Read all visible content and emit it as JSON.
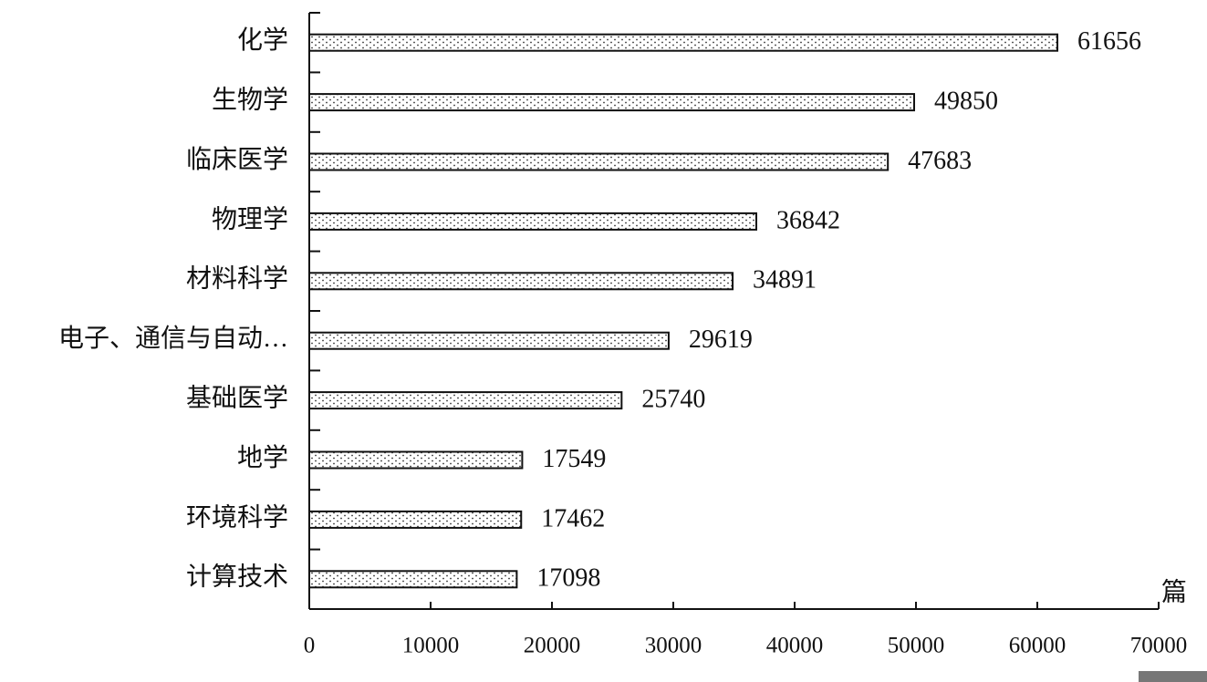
{
  "chart_data": {
    "type": "bar",
    "orientation": "horizontal",
    "categories": [
      "化学",
      "生物学",
      "临床医学",
      "物理学",
      "材料科学",
      "电子、通信与自动…",
      "基础医学",
      "地学",
      "环境科学",
      "计算技术"
    ],
    "values": [
      61656,
      49850,
      47683,
      36842,
      34891,
      29619,
      25740,
      17549,
      17462,
      17098
    ],
    "x_unit": "篇",
    "xlim": [
      0,
      70000
    ],
    "xticks": [
      0,
      10000,
      20000,
      30000,
      40000,
      50000,
      60000,
      70000
    ],
    "color": "#ffffff",
    "grid": false
  }
}
